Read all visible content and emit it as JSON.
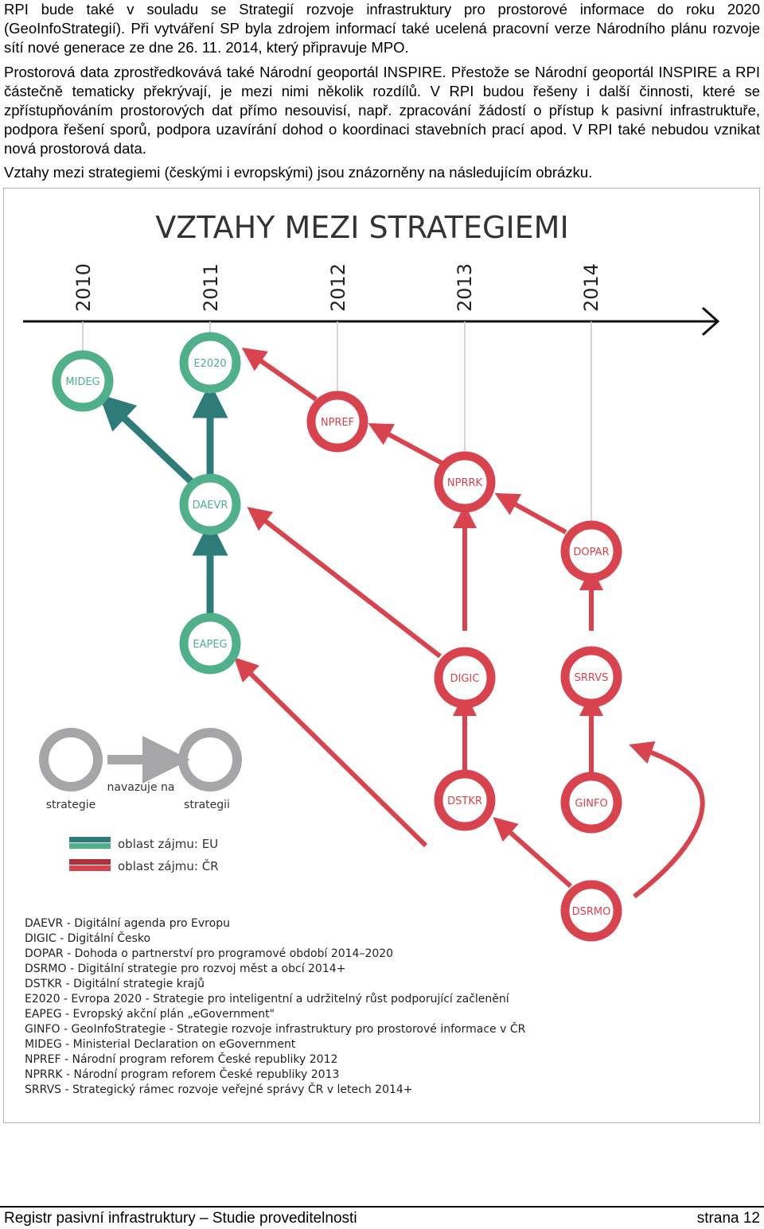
{
  "paragraphs": [
    "RPI bude také v souladu se Strategií rozvoje infrastruktury pro prostorové informace do roku 2020 (GeoInfoStrategií). Při vytváření SP byla zdrojem informací také ucelená pracovní verze Národního plánu rozvoje sítí nové generace ze dne 26. 11. 2014, který připravuje MPO.",
    "Prostorová data zprostředkovává také Národní geoportál INSPIRE. Přestože se Národní geoportál INSPIRE a RPI částečně tematicky překrývají, je mezi nimi několik rozdílů. V RPI budou řešeny i další činnosti, které se zpřístupňováním prostorových dat přímo nesouvisí, např. zpracování žádostí o přístup k pasivní infrastruktuře, podpora řešení sporů, podpora uzavírání dohod o koordinaci stavebních prací apod. V RPI také nebudou vznikat nová prostorová data.",
    "Vztahy mezi strategiemi (českými i evropskými) jsou znázorněny na následujícím obrázku."
  ],
  "figure": {
    "title": "VZTAHY MEZI STRATEGIEMI",
    "years": [
      "2010",
      "2011",
      "2012",
      "2013",
      "2014"
    ],
    "colors": {
      "eu": "#4fb08a",
      "eu_dark": "#2e7c7a",
      "cz": "#d9434e",
      "cz_dark": "#b0303b",
      "grey": "#a6a6a8"
    },
    "nodes": {
      "mideg": "MIDEG",
      "e2020": "E2020",
      "npref": "NPREF",
      "daevr": "DAEVR",
      "nprrk": "NPRRK",
      "dopar": "DOPAR",
      "eapeg": "EAPEG",
      "digic": "DIGIC",
      "srrvs": "SRRVS",
      "dstkr": "DSTKR",
      "ginfo": "GINFO",
      "dsrmo": "DSRMO"
    },
    "key": {
      "strategy_left": "strategie",
      "relation": "navazuje na",
      "strategy_right": "strategii",
      "eu_area": "oblast zájmu: EU",
      "cz_area": "oblast zájmu: ČR"
    },
    "abbreviations": [
      "DAEVR - Digitální agenda pro Evropu",
      "DIGIC - Digitální Česko",
      "DOPAR - Dohoda o partnerství pro programové období 2014–2020",
      "DSRMO - Digitální strategie pro rozvoj měst a obcí 2014+",
      "DSTKR - Digitální strategie krajů",
      "E2020 - Evropa 2020 - Strategie pro inteligentní a udržitelný růst podporující začlenění",
      "EAPEG - Evropský akční plán „eGovernment\"",
      "GINFO - GeoInfoStrategie - Strategie rozvoje infrastruktury pro prostorové informace v ČR",
      "MIDEG - Ministerial Declaration on eGovernment",
      "NPREF - Národní program reforem České republiky 2012",
      "NPRRK - Národní program reforem České republiky 2013",
      "SRRVS - Strategický rámec rozvoje veřejné správy ČR v letech 2014+"
    ]
  },
  "footer": {
    "left": "Registr pasivní infrastruktury – Studie proveditelnosti",
    "right": "strana 12"
  }
}
